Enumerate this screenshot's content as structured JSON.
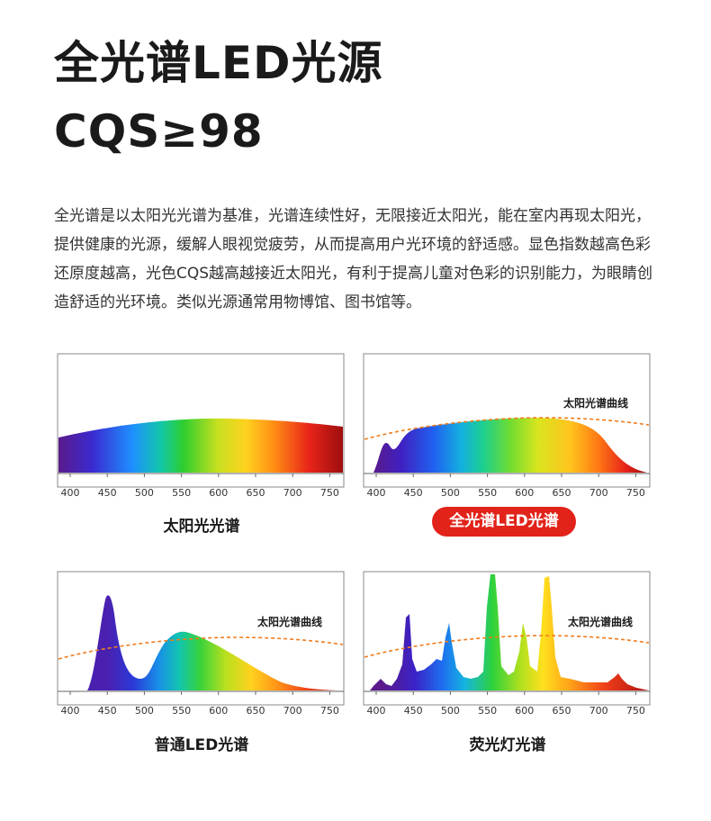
{
  "title_line1": "全光谱LED光源",
  "title_line2": "CQS≥98",
  "description": "全光谱是以太阳光光谱为基准，光谱连续性好，无限接近太阳光，能在室内再现太阳光，提供健康的光源，缓解人眼视觉疲劳，从而提高用户光环境的舒适感。显色指数越高色彩还原度越高，光色CQS越高越接近太阳光，有利于提高儿童对色彩的识别能力，为眼睛创造舒适的光环境。类似光源通常用物博馆、图书馆等。",
  "x_ticks": [
    "400",
    "450",
    "500",
    "550",
    "600",
    "650",
    "700",
    "750"
  ],
  "sun_curve_label": "太阳光谱曲线",
  "colors": {
    "accent_red": "#e2231a",
    "sun_curve": "#f07d1e"
  },
  "panels": [
    {
      "caption": "太阳光光谱",
      "highlight": false,
      "show_sun_curve": false
    },
    {
      "caption": "全光谱LED光谱",
      "highlight": true,
      "show_sun_curve": true
    },
    {
      "caption": "普通LED光谱",
      "highlight": false,
      "show_sun_curve": true
    },
    {
      "caption": "荧光灯光谱",
      "highlight": false,
      "show_sun_curve": true
    }
  ]
}
